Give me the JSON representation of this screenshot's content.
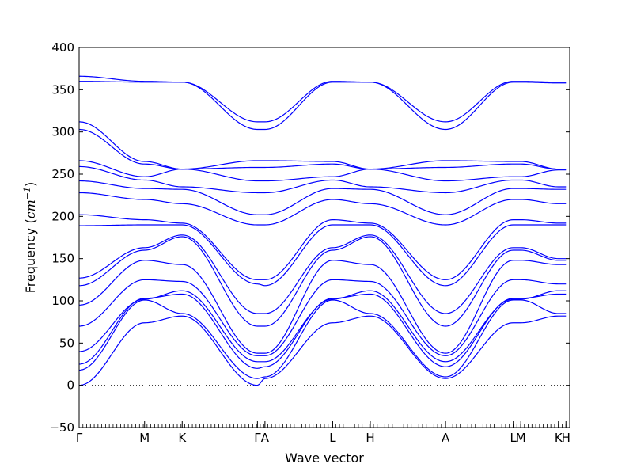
{
  "chart_data": {
    "type": "line",
    "title": "",
    "xlabel": "Wave vector",
    "ylabel_prefix": "Frequency (",
    "ylabel_unit": "cm",
    "ylabel_exponent": "−1",
    "ylabel_suffix": ")",
    "ylim": [
      -50,
      400
    ],
    "yticks": [
      "−50",
      "0",
      "50",
      "100",
      "150",
      "200",
      "250",
      "300",
      "350",
      "400"
    ],
    "ytick_values": [
      -50,
      0,
      50,
      100,
      150,
      200,
      250,
      300,
      350,
      400
    ],
    "xlim": [
      0,
      13.04
    ],
    "high_symmetry_points": [
      {
        "label": "Γ",
        "x": 0
      },
      {
        "label": "M",
        "x": 1.74
      },
      {
        "label": "K",
        "x": 2.74
      },
      {
        "label": "Γ",
        "x": 4.74
      },
      {
        "label": "A",
        "x": 4.94
      },
      {
        "label": "L",
        "x": 6.74
      },
      {
        "label": "H",
        "x": 7.74
      },
      {
        "label": "A",
        "x": 9.74
      },
      {
        "label": "L",
        "x": 11.54
      },
      {
        "label": "M",
        "x": 11.74
      },
      {
        "label": "K",
        "x": 12.74
      },
      {
        "label": "H",
        "x": 12.94
      }
    ],
    "zero_line": true,
    "grid": false,
    "series_color": "#0000ff",
    "segments": [
      {
        "from": 0,
        "to": 1.74,
        "start": [
          0,
          18,
          25,
          40,
          70,
          95,
          118,
          127,
          189,
          202,
          228,
          242,
          259,
          266,
          303,
          312,
          360,
          366
        ],
        "end": [
          74,
          101,
          103,
          102,
          125,
          148,
          160,
          163,
          190,
          196,
          220,
          233,
          243,
          247,
          262,
          265,
          359,
          360
        ]
      },
      {
        "from": 1.74,
        "to": 2.74,
        "start": [
          74,
          101,
          103,
          102,
          125,
          148,
          160,
          163,
          190,
          196,
          220,
          233,
          243,
          247,
          262,
          265,
          359,
          360
        ],
        "end": [
          82,
          85,
          108,
          112,
          123,
          143,
          176,
          178,
          190,
          192,
          215,
          232,
          235,
          256,
          256,
          256,
          359,
          359
        ]
      },
      {
        "from": 2.74,
        "to": 4.74,
        "start": [
          82,
          85,
          108,
          112,
          123,
          143,
          176,
          178,
          190,
          192,
          215,
          232,
          235,
          256,
          256,
          256,
          359,
          359
        ],
        "end": [
          0,
          8,
          20,
          28,
          35,
          38,
          70,
          85,
          120,
          125,
          190,
          202,
          228,
          242,
          258,
          266,
          303,
          312
        ]
      },
      {
        "from": 4.74,
        "to": 4.94,
        "start": [
          0,
          8,
          20,
          28,
          35,
          38,
          70,
          85,
          120,
          125,
          190,
          202,
          228,
          242,
          258,
          266,
          303,
          312
        ],
        "end": [
          8,
          10,
          22,
          28,
          35,
          38,
          70,
          85,
          118,
          125,
          190,
          202,
          228,
          242,
          258,
          266,
          303,
          312
        ]
      },
      {
        "from": 4.94,
        "to": 6.74,
        "start": [
          8,
          10,
          22,
          28,
          35,
          38,
          70,
          85,
          118,
          125,
          190,
          202,
          228,
          242,
          258,
          266,
          303,
          312
        ],
        "end": [
          74,
          101,
          103,
          102,
          125,
          148,
          160,
          163,
          190,
          196,
          220,
          233,
          243,
          247,
          262,
          265,
          359,
          360
        ]
      },
      {
        "from": 6.74,
        "to": 7.74,
        "start": [
          74,
          101,
          103,
          102,
          125,
          148,
          160,
          163,
          190,
          196,
          220,
          233,
          243,
          247,
          262,
          265,
          359,
          360
        ],
        "end": [
          82,
          85,
          108,
          112,
          123,
          143,
          176,
          178,
          190,
          192,
          215,
          232,
          235,
          256,
          256,
          256,
          359,
          359
        ]
      },
      {
        "from": 7.74,
        "to": 9.74,
        "start": [
          82,
          85,
          108,
          112,
          123,
          143,
          176,
          178,
          190,
          192,
          215,
          232,
          235,
          256,
          256,
          256,
          359,
          359
        ],
        "end": [
          8,
          10,
          22,
          28,
          35,
          38,
          70,
          85,
          118,
          125,
          190,
          202,
          228,
          242,
          258,
          266,
          303,
          312
        ]
      },
      {
        "from": 9.74,
        "to": 11.54,
        "start": [
          8,
          10,
          22,
          28,
          35,
          38,
          70,
          85,
          118,
          125,
          190,
          202,
          228,
          242,
          258,
          266,
          303,
          312
        ],
        "end": [
          74,
          101,
          103,
          102,
          125,
          148,
          160,
          163,
          190,
          196,
          220,
          233,
          243,
          247,
          262,
          265,
          359,
          360
        ]
      },
      {
        "from": 11.54,
        "to": 11.74,
        "start": [
          74,
          101,
          103,
          102,
          125,
          148,
          160,
          163,
          190,
          196,
          220,
          233,
          243,
          247,
          262,
          265,
          359,
          360
        ],
        "end": [
          74,
          101,
          103,
          102,
          125,
          148,
          160,
          163,
          190,
          196,
          220,
          233,
          243,
          247,
          262,
          265,
          359,
          360
        ]
      },
      {
        "from": 11.74,
        "to": 12.74,
        "start": [
          74,
          101,
          103,
          102,
          125,
          148,
          160,
          163,
          190,
          196,
          220,
          233,
          243,
          247,
          262,
          265,
          359,
          360
        ],
        "end": [
          82,
          85,
          108,
          112,
          120,
          143,
          148,
          150,
          190,
          192,
          215,
          232,
          235,
          255,
          256,
          256,
          358,
          359
        ]
      },
      {
        "from": 12.74,
        "to": 12.94,
        "start": [
          82,
          85,
          108,
          112,
          120,
          143,
          148,
          150,
          190,
          192,
          215,
          232,
          235,
          255,
          256,
          256,
          358,
          359
        ],
        "end": [
          82,
          85,
          108,
          112,
          120,
          143,
          148,
          150,
          190,
          192,
          215,
          232,
          235,
          255,
          256,
          256,
          358,
          359
        ]
      }
    ]
  }
}
